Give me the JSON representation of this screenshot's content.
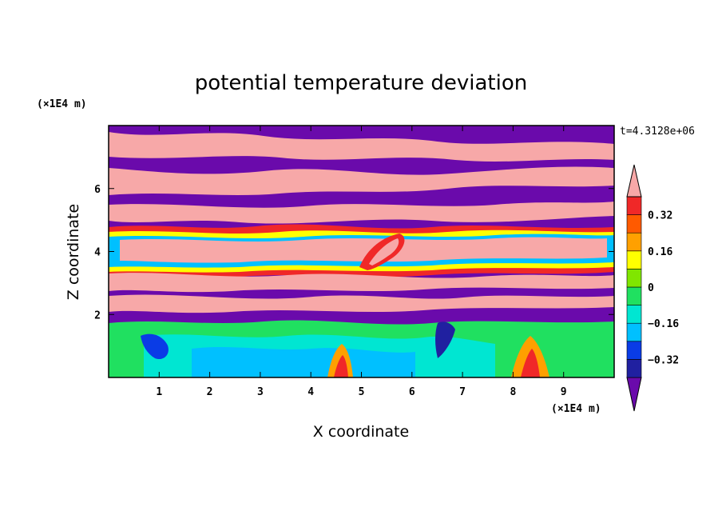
{
  "chart_data": {
    "type": "heatmap",
    "title": "potential temperature deviation",
    "xlabel": "X coordinate",
    "ylabel": "Z coordinate",
    "x_unit": "(×1E4 m)",
    "y_unit": "(×1E4 m)",
    "time_label": "t=4.3128e+06",
    "xlim": [
      0,
      10
    ],
    "ylim": [
      0,
      8
    ],
    "x_ticks": [
      "1",
      "2",
      "3",
      "4",
      "5",
      "6",
      "7",
      "8",
      "9"
    ],
    "y_ticks": [
      "2",
      "4",
      "6"
    ],
    "colorbar": {
      "levels": [
        -0.4,
        -0.32,
        -0.24,
        -0.16,
        -0.08,
        0,
        0.08,
        0.16,
        0.24,
        0.32,
        0.4
      ],
      "labels": [
        "0.32",
        "0.16",
        "0",
        "−0.16",
        "−0.32"
      ],
      "label_values": [
        0.32,
        0.16,
        0,
        -0.16,
        -0.32
      ],
      "colors": [
        "#6a0aab",
        "#2020a0",
        "#0a3ce6",
        "#00c0ff",
        "#00e6d2",
        "#20e060",
        "#80e600",
        "#ffff00",
        "#ffa000",
        "#ff5a00",
        "#f02828",
        "#f7a8a8"
      ],
      "extend": "both"
    }
  }
}
